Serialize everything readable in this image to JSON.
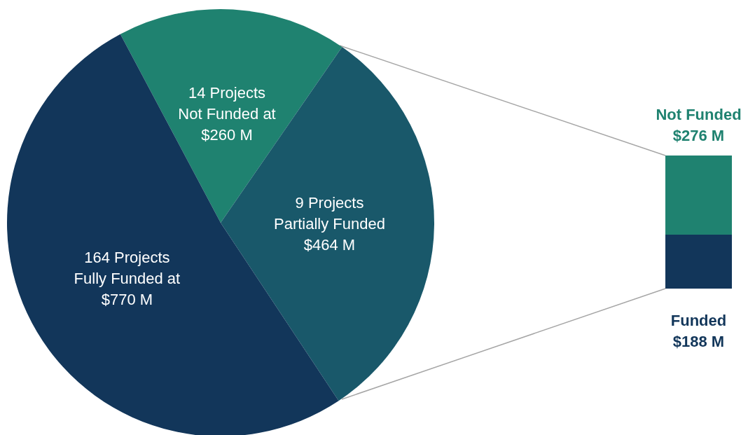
{
  "chart_data": [
    {
      "type": "pie",
      "categories": [
        "14 Projects\nNot Funded at",
        "9 Projects\nPartially Funded",
        "164 Projects\nFully Funded at"
      ],
      "values": [
        260,
        464,
        770
      ],
      "colors": [
        "#1f8270",
        "#19586a",
        "#12365a"
      ],
      "value_labels": [
        "$260 M",
        "$464 M",
        "$770 M"
      ],
      "legend": false
    },
    {
      "type": "bar",
      "stacked": true,
      "categories": [
        null
      ],
      "series": [
        {
          "name": "Funded",
          "color": "#12365a",
          "values": [
            188
          ],
          "value_labels": [
            "$188 M"
          ]
        },
        {
          "name": "Not Funded",
          "color": "#1f8270",
          "values": [
            276
          ],
          "value_labels": [
            "$276 M"
          ]
        }
      ],
      "legend": false
    }
  ]
}
